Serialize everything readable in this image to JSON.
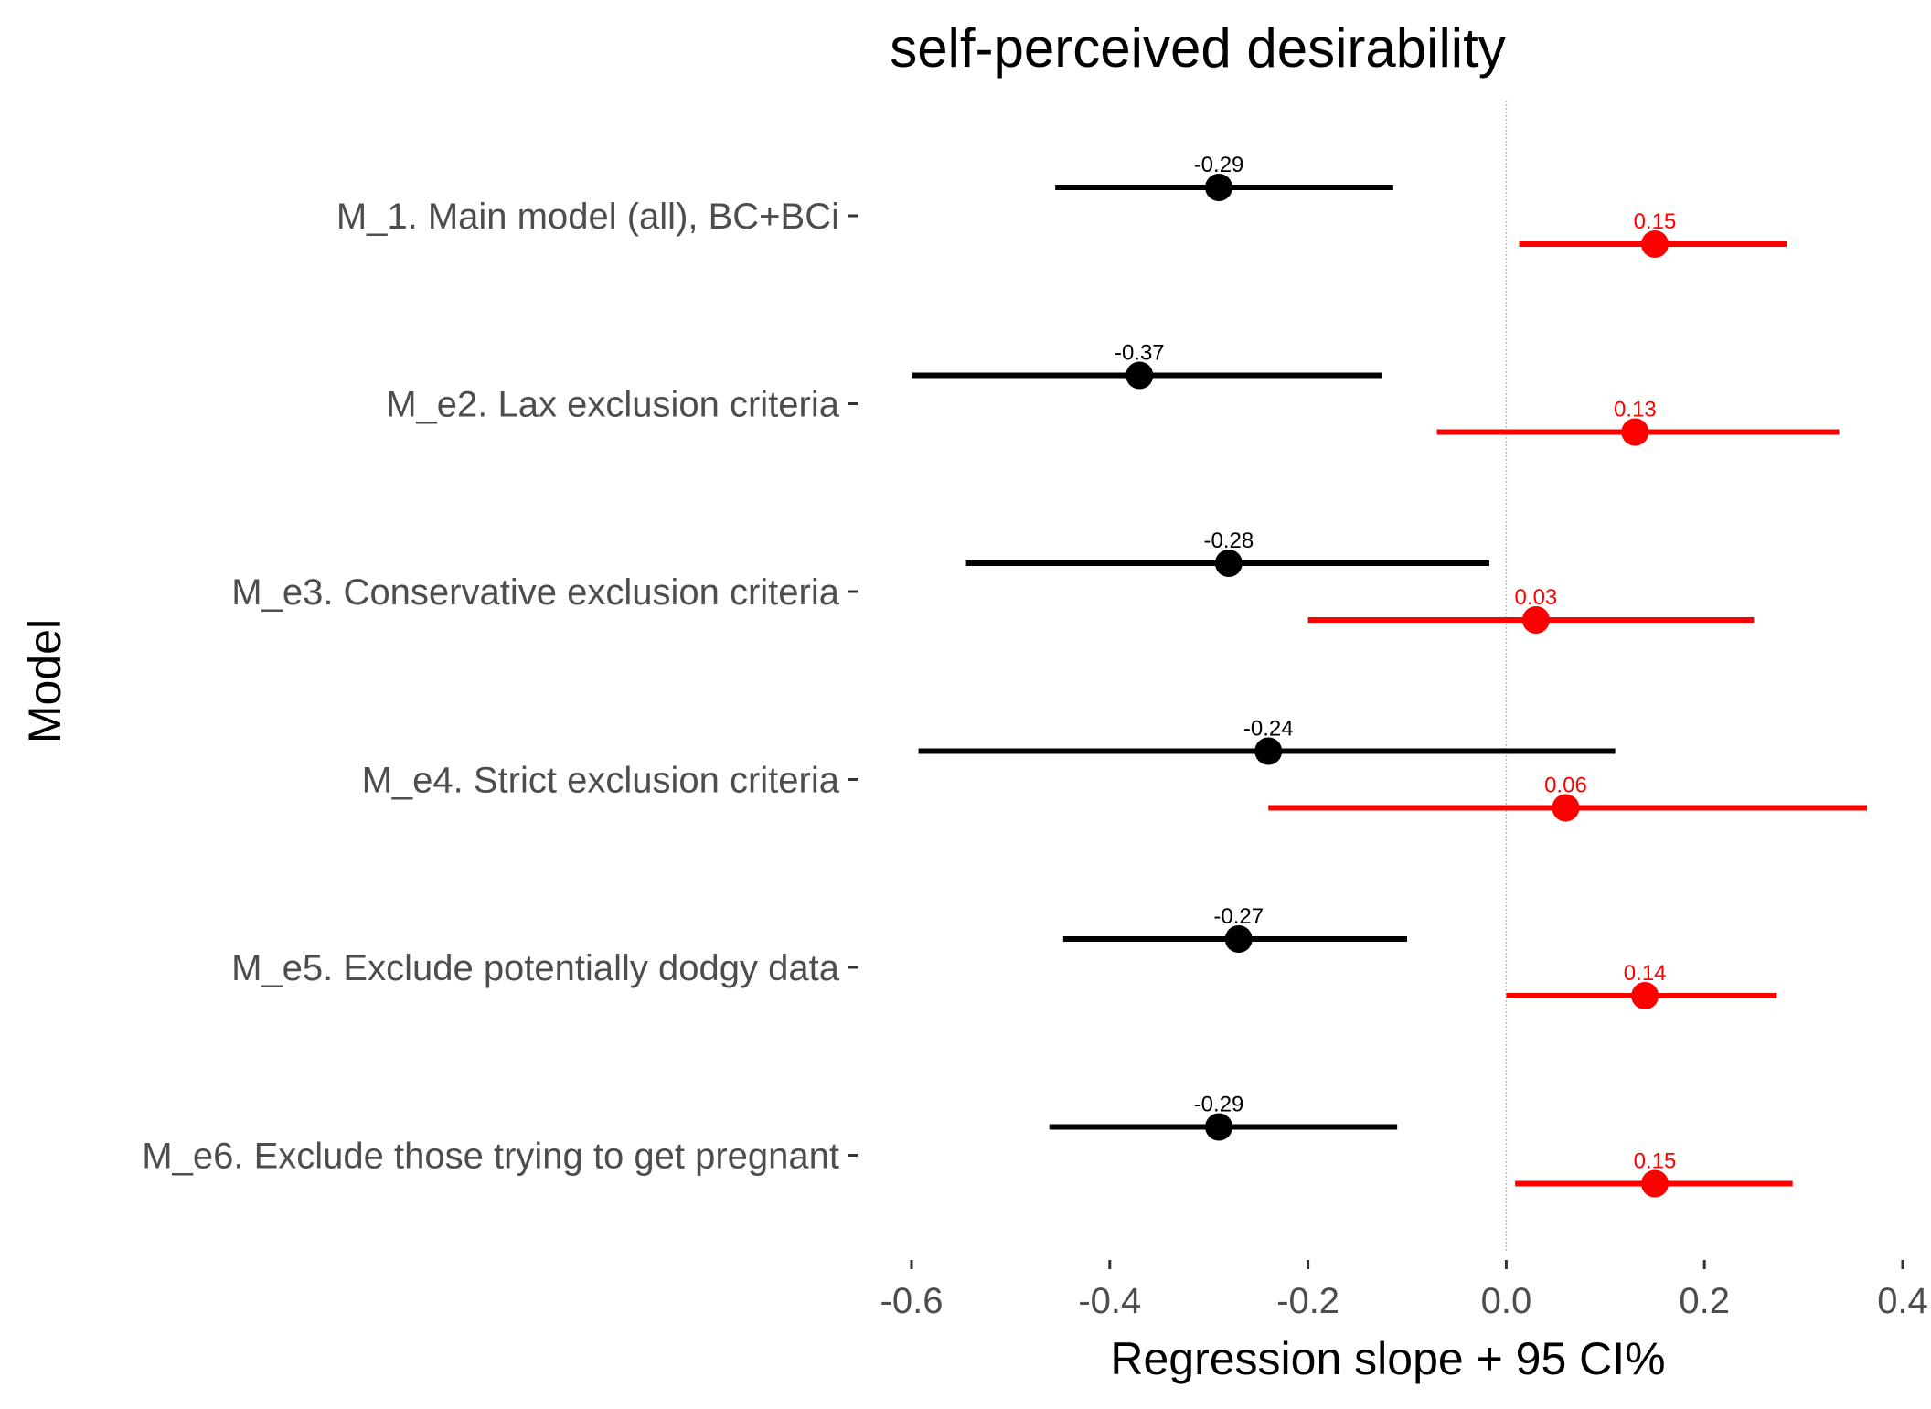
{
  "chart_data": {
    "type": "scatter",
    "title": "self-perceived desirability",
    "xlabel": "Regression slope + 95 CI%",
    "ylabel": "Model",
    "xlim": [
      -0.6,
      0.4
    ],
    "x_ticks": [
      -0.6,
      -0.4,
      -0.2,
      0.0,
      0.2,
      0.4
    ],
    "x_tick_labels": [
      "-0.6",
      "-0.4",
      "-0.2",
      "0.0",
      "0.2",
      "0.4"
    ],
    "reference_line_x": 0,
    "grid": false,
    "legend": "none",
    "categories": [
      "M_1. Main model (all), BC+BCi",
      "M_e2. Lax exclusion criteria",
      "M_e3. Conservative exclusion criteria",
      "M_e4. Strict exclusion criteria",
      "M_e5. Exclude potentially dodgy data",
      "M_e6. Exclude those trying to get pregnant"
    ],
    "series": [
      {
        "color": "#000000",
        "estimates": [
          -0.29,
          -0.37,
          -0.28,
          -0.24,
          -0.27,
          -0.29
        ],
        "labels": [
          "-0.29",
          "-0.37",
          "-0.28",
          "-0.24",
          "-0.27",
          "-0.29"
        ],
        "ci_low": [
          -0.455,
          -0.6,
          -0.545,
          -0.593,
          -0.447,
          -0.461
        ],
        "ci_high": [
          -0.114,
          -0.125,
          -0.017,
          0.11,
          -0.1,
          -0.11
        ]
      },
      {
        "color": "#ff0000",
        "estimates": [
          0.15,
          0.13,
          0.03,
          0.06,
          0.14,
          0.15
        ],
        "labels": [
          "0.15",
          "0.13",
          "0.03",
          "0.06",
          "0.14",
          "0.15"
        ],
        "ci_low": [
          0.013,
          -0.07,
          -0.2,
          -0.24,
          0.0,
          0.009
        ],
        "ci_high": [
          0.283,
          0.336,
          0.25,
          0.364,
          0.273,
          0.289
        ]
      }
    ]
  }
}
